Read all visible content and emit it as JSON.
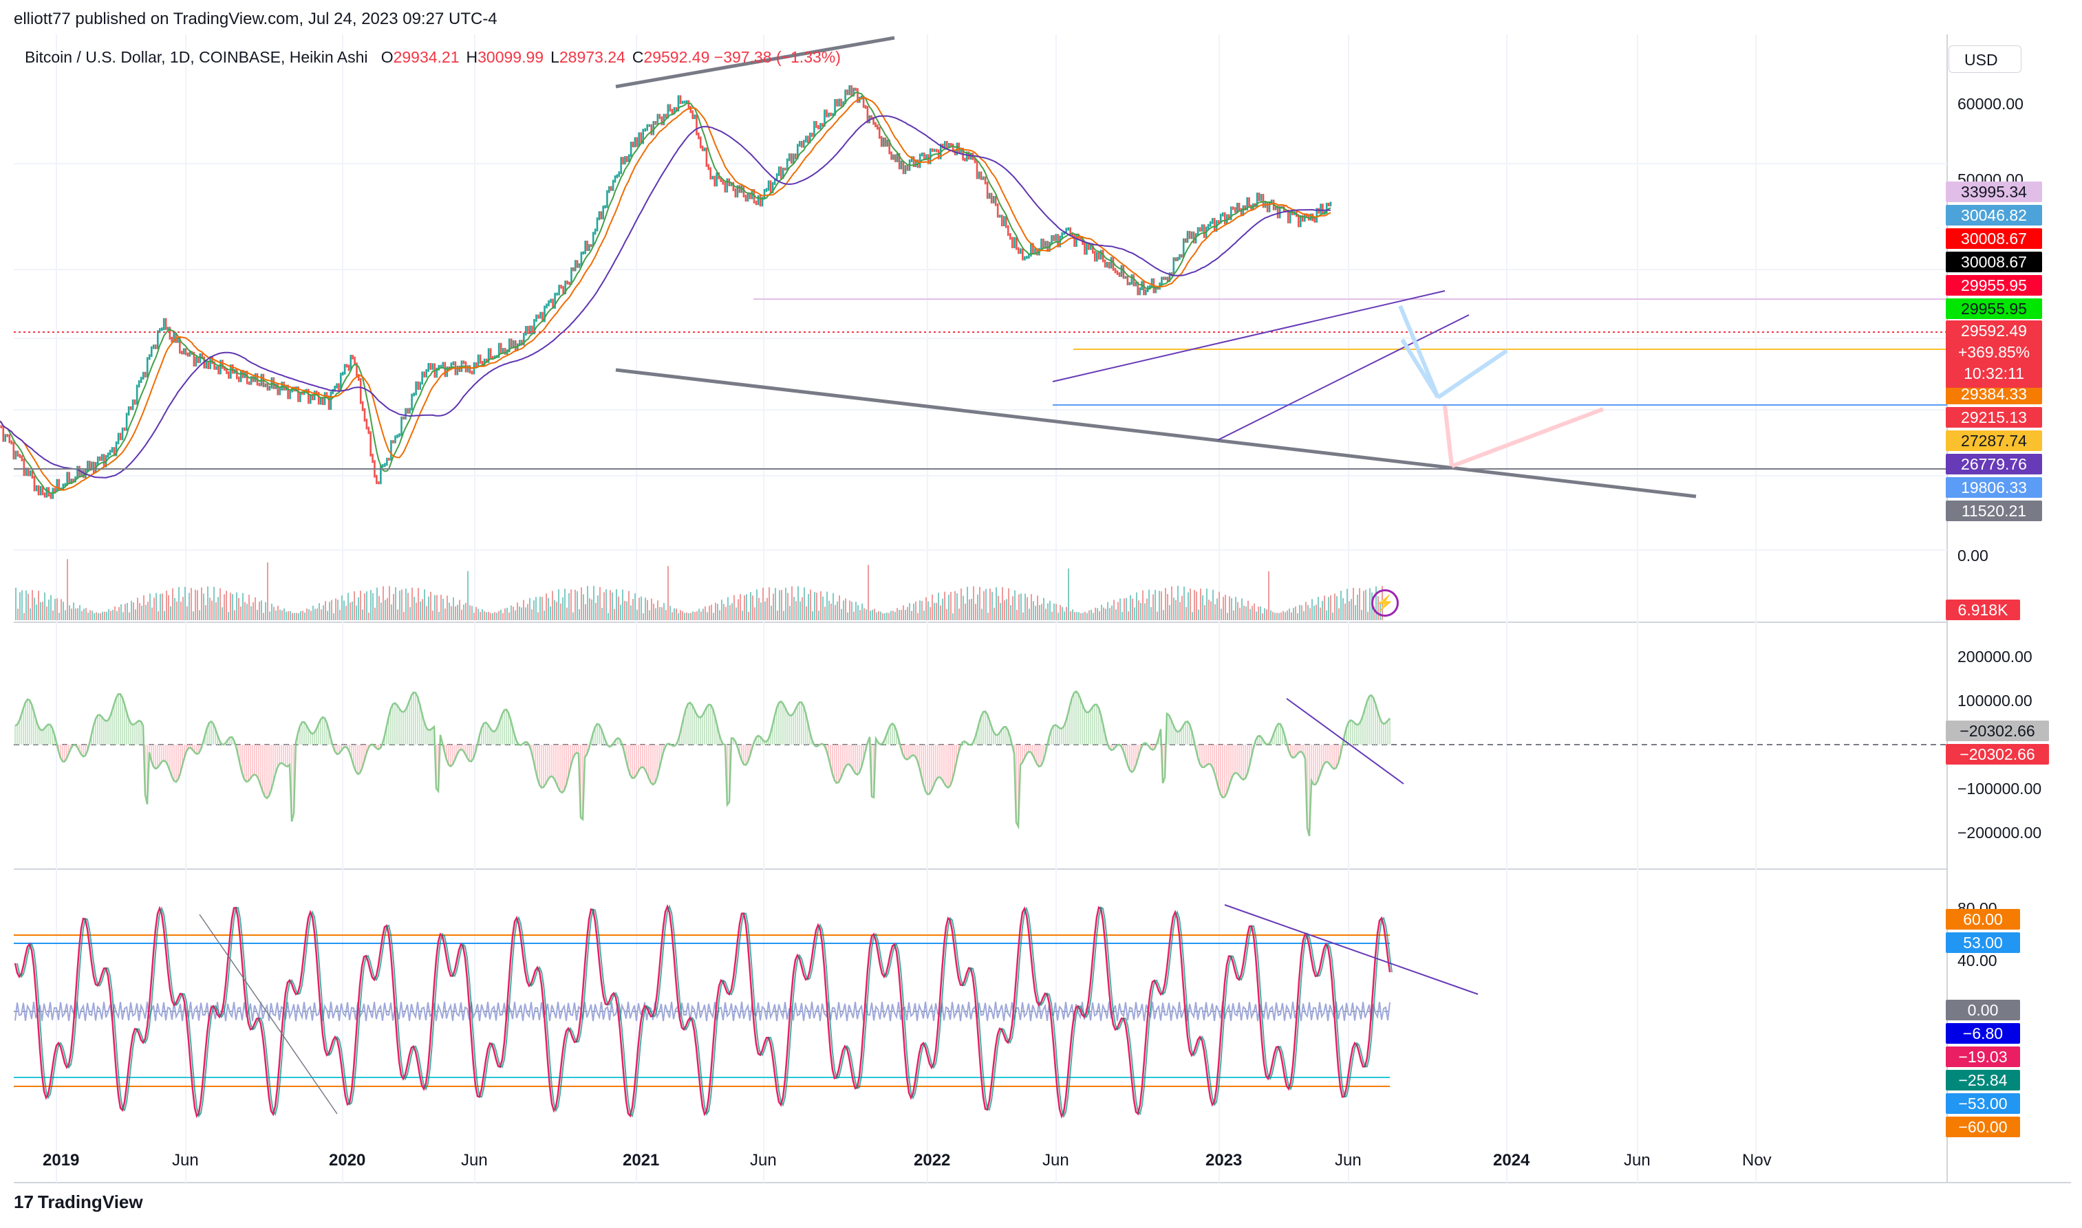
{
  "header": {
    "published": "elliott77 published on TradingView.com, Jul 24, 2023 09:27 UTC-4",
    "symbol": "Bitcoin / U.S. Dollar, 1D, COINBASE, Heikin Ashi",
    "ohlc": [
      {
        "label": "O",
        "value": "29934.21"
      },
      {
        "label": "H",
        "value": "30099.99"
      },
      {
        "label": "L",
        "value": "28973.24"
      },
      {
        "label": "C",
        "value": "29592.49 −397.38 (−1.33%)"
      }
    ],
    "currency": "USD"
  },
  "price_axis": {
    "ticks": [
      "60000.00",
      "50000.00",
      "0.00"
    ],
    "badges": [
      {
        "label": "33995.34",
        "color": "#e1bee7",
        "text_color": "#131722"
      },
      {
        "label": "30046.82",
        "color": "#4ca3d9",
        "text_color": "#ffffff"
      },
      {
        "label": "30008.67",
        "color": "#ff0000",
        "text_color": "#ffffff"
      },
      {
        "label": "30008.67",
        "color": "#000000",
        "text_color": "#ffffff"
      },
      {
        "label": "29955.95",
        "color": "#ff0033",
        "text_color": "#ffffff"
      },
      {
        "label": "29955.95",
        "color": "#00e600",
        "text_color": "#131722"
      },
      {
        "label": "29384.33",
        "color": "#f57c00",
        "text_color": "#ffffff"
      },
      {
        "label": "29215.13",
        "color": "#f23645",
        "text_color": "#ffffff"
      },
      {
        "label": "27287.74",
        "color": "#fbc02d",
        "text_color": "#131722"
      },
      {
        "label": "26779.76",
        "color": "#673ab7",
        "text_color": "#ffffff"
      },
      {
        "label": "19806.33",
        "color": "#5b9cf6",
        "text_color": "#ffffff"
      },
      {
        "label": "11520.21",
        "color": "#787b86",
        "text_color": "#ffffff"
      }
    ],
    "last_price": {
      "price": "29592.49",
      "change": "+369.85%",
      "countdown": "10:32:11",
      "color": "#f23645"
    },
    "volume_badge": {
      "label": "6.918K",
      "color": "#f23645"
    }
  },
  "osc1_axis": {
    "ticks": [
      "200000.00",
      "100000.00",
      "−100000.00",
      "−200000.00"
    ],
    "badges": [
      {
        "label": "−20302.66",
        "color": "#bdbdbd",
        "text_color": "#131722"
      },
      {
        "label": "−20302.66",
        "color": "#f23645",
        "text_color": "#ffffff"
      }
    ]
  },
  "osc2_axis": {
    "ticks": [
      "80.00",
      "40.00"
    ],
    "badges": [
      {
        "label": "60.00",
        "color": "#f57c00",
        "text_color": "#ffffff"
      },
      {
        "label": "53.00",
        "color": "#2196f3",
        "text_color": "#ffffff"
      },
      {
        "label": "0.00",
        "color": "#787b86",
        "text_color": "#ffffff"
      },
      {
        "label": "−6.80",
        "color": "#0000e6",
        "text_color": "#ffffff"
      },
      {
        "label": "−19.03",
        "color": "#e91e63",
        "text_color": "#ffffff"
      },
      {
        "label": "−25.84",
        "color": "#00897b",
        "text_color": "#ffffff"
      },
      {
        "label": "−53.00",
        "color": "#2196f3",
        "text_color": "#ffffff"
      },
      {
        "label": "−60.00",
        "color": "#f57c00",
        "text_color": "#ffffff"
      }
    ]
  },
  "time_axis": [
    {
      "label": "2019",
      "bold": true
    },
    {
      "label": "Jun",
      "bold": false
    },
    {
      "label": "2020",
      "bold": true
    },
    {
      "label": "Jun",
      "bold": false
    },
    {
      "label": "2021",
      "bold": true
    },
    {
      "label": "Jun",
      "bold": false
    },
    {
      "label": "2022",
      "bold": true
    },
    {
      "label": "Jun",
      "bold": false
    },
    {
      "label": "2023",
      "bold": true
    },
    {
      "label": "Jun",
      "bold": false
    },
    {
      "label": "2024",
      "bold": true
    },
    {
      "label": "Jun",
      "bold": false
    },
    {
      "label": "Nov",
      "bold": false
    }
  ],
  "footer": {
    "logo": "17",
    "brand": "TradingView"
  },
  "icons": {
    "alert": "lightning-bolt-icon"
  },
  "chart_data": {
    "type": "line",
    "series": [
      {
        "name": "",
        "x": [
          "2018-11",
          "2019-01",
          "2019-04",
          "2019-06",
          "2019-07",
          "2019-10",
          "2020-01",
          "2020-02",
          "2020-03",
          "2020-05",
          "2020-07",
          "2020-09",
          "2020-11",
          "2020-12",
          "2021-01",
          "2021-02",
          "2021-04",
          "2021-05",
          "2021-07",
          "2021-09",
          "2021-11",
          "2021-12",
          "2022-01",
          "2022-03",
          "2022-04",
          "2022-06",
          "2022-08",
          "2022-11",
          "2022-12",
          "2023-01",
          "2023-03",
          "2023-04",
          "2023-06",
          "2023-07"
        ],
        "y": [
          6300,
          3600,
          5000,
          12500,
          10000,
          8200,
          7200,
          10000,
          4000,
          9000,
          9200,
          11000,
          17000,
          23000,
          36000,
          48000,
          63000,
          36000,
          30000,
          47000,
          68000,
          49000,
          38000,
          45000,
          40000,
          20000,
          24000,
          16000,
          16500,
          23000,
          28000,
          30000,
          26000,
          29592
        ]
      }
    ],
    "price_levels": [
      33995.34,
      30046.82,
      30008.67,
      29955.95,
      29384.33,
      29215.13,
      27287.74,
      26779.76,
      19806.33,
      11520.21
    ],
    "last_price": 29592.49,
    "volume_last": "6.918K",
    "oscillator_1": {
      "last": -20302.66,
      "range": [
        -250000,
        250000
      ]
    },
    "oscillator_2": {
      "levels": [
        60,
        53,
        0,
        -53,
        -60
      ],
      "last": [
        -6.8,
        -19.03,
        -25.84
      ]
    },
    "ylim": [
      0,
      70000
    ],
    "grid": true,
    "legend": "none"
  }
}
